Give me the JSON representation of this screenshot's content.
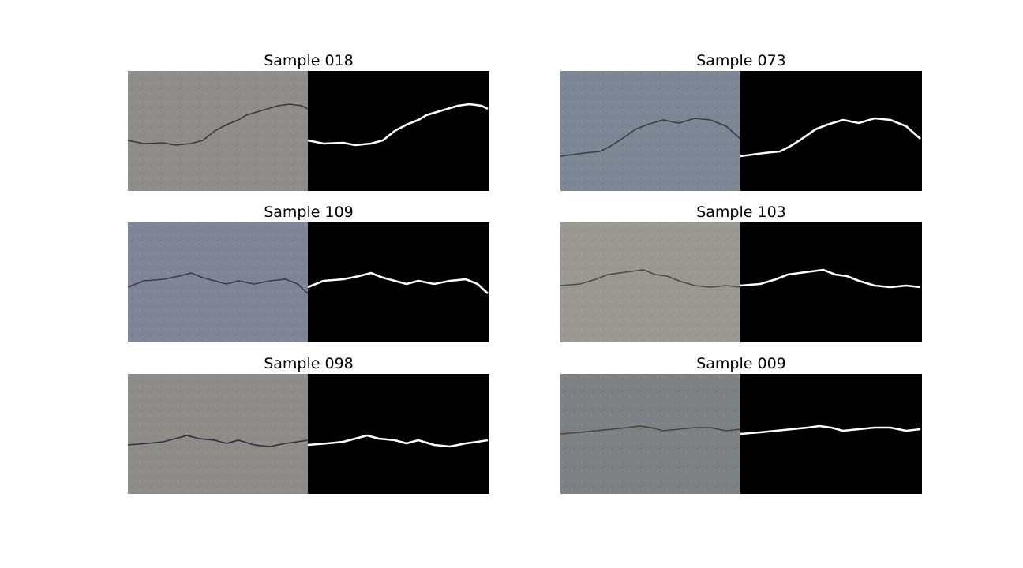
{
  "figure": {
    "samples": [
      {
        "title": "Sample 018",
        "photo_color": "#8f8d89",
        "crack_color": "#3a3a38"
      },
      {
        "title": "Sample 073",
        "photo_color": "#7d8694",
        "crack_color": "#3b3e40"
      },
      {
        "title": "Sample 109",
        "photo_color": "#7f8497",
        "crack_color": "#3c3d42"
      },
      {
        "title": "Sample 103",
        "photo_color": "#9a9890",
        "crack_color": "#4a4a44"
      },
      {
        "title": "Sample 098",
        "photo_color": "#8d8c89",
        "crack_color": "#2e3038"
      },
      {
        "title": "Sample 009",
        "photo_color": "#7e8184",
        "crack_color": "#44443c"
      }
    ]
  }
}
